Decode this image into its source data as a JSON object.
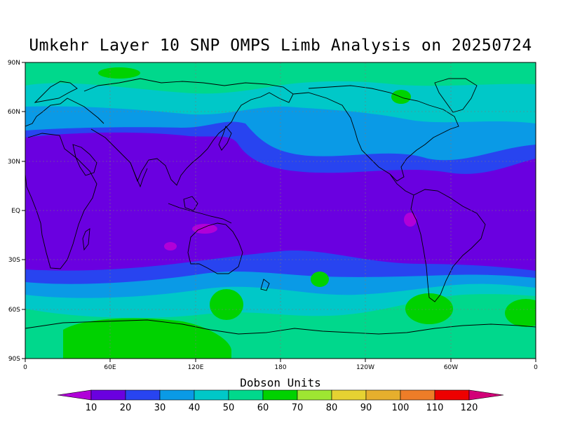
{
  "title": "Umkehr Layer 10 SNP OMPS Limb Analysis on 20250724",
  "map": {
    "lat_labels": [
      "90N",
      "60N",
      "30N",
      "EQ",
      "30S",
      "60S",
      "90S"
    ],
    "lon_labels": [
      "0",
      "60E",
      "120E",
      "180",
      "120W",
      "60W",
      "0"
    ]
  },
  "colorbar": {
    "title": "Dobson Units",
    "levels": [
      "10",
      "20",
      "30",
      "40",
      "50",
      "60",
      "70",
      "80",
      "90",
      "100",
      "110",
      "120"
    ],
    "colors": [
      "#b000d8",
      "#6a00e0",
      "#2844f0",
      "#0a9ae6",
      "#00c8c8",
      "#00d88c",
      "#00d200",
      "#9ee632",
      "#e6d232",
      "#e6af2d",
      "#ee7d28",
      "#ee0000",
      "#d20078"
    ]
  },
  "field_colors": {
    "deep_tropics": "#b000d8",
    "tropics": "#6a00e0",
    "subtropics": "#2844f0",
    "midlat": "#0a9ae6",
    "highlat": "#00c8c8",
    "polar": "#00d88c",
    "peak": "#00d200"
  }
}
